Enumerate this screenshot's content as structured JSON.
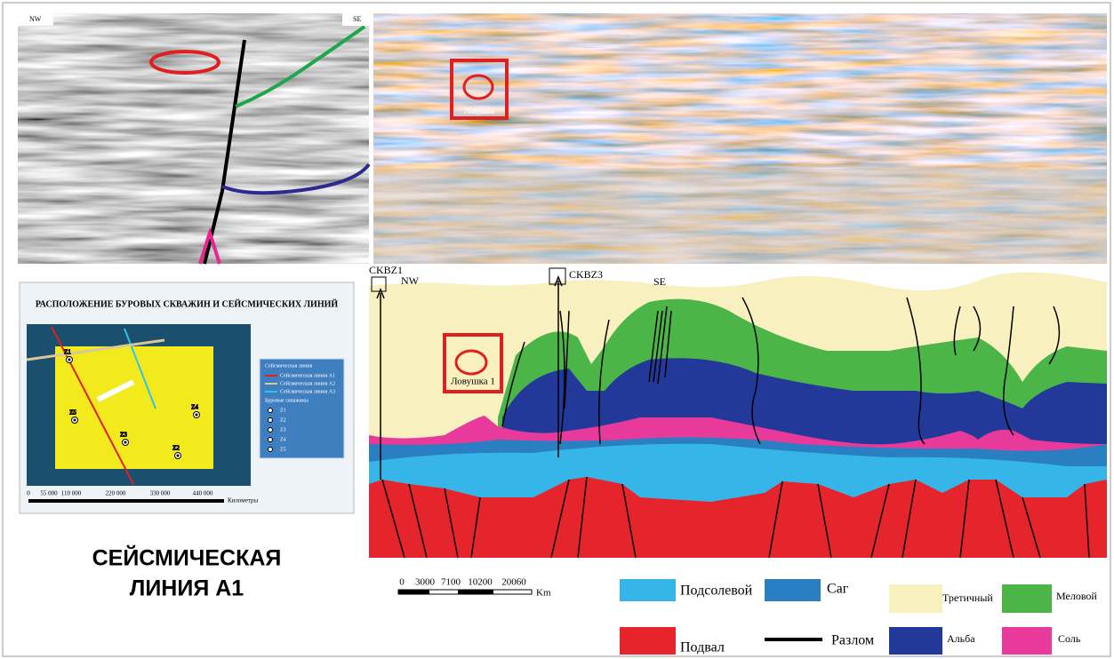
{
  "seismic_left": {
    "nw": "NW",
    "se": "SE"
  },
  "seismic_right": {
    "trap": "Ловушка"
  },
  "map": {
    "title": "РАСПОЛОЖЕНИЕ БУРОВЫХ СКВАЖИН И СЕЙСМИЧЕСКИХ ЛИНИЙ",
    "wells": [
      "Z1",
      "Z5",
      "Z3",
      "Z2",
      "Z4"
    ],
    "legend": {
      "title": "Сейсмическая линия",
      "lines": [
        "Сейсмическая линия A1",
        "Сейсмическая линия A2",
        "Сейсмическая линия A3"
      ],
      "wells_title": "Буровые скважины",
      "wells": [
        "Z1",
        "Z2",
        "Z3",
        "Z4",
        "Z5"
      ]
    },
    "scale": [
      "0",
      "55 000",
      "110 000",
      "220 000",
      "330 000",
      "440 000"
    ],
    "scale_unit": "Километры"
  },
  "caption": [
    "СЕЙСМИЧЕСКАЯ",
    "ЛИНИЯ A1"
  ],
  "section": {
    "wells": [
      "CKBZ1",
      "CKBZ3"
    ],
    "nw": "NW",
    "se": "SE",
    "trap": "Ловушка 1",
    "scale": [
      "0",
      "3000",
      "7100",
      "10200",
      "20060"
    ],
    "scale_unit": "Km"
  },
  "legend": [
    "Подсолевой",
    "Саг",
    "Третичный",
    "Меловой",
    "Подвал",
    "Разлом",
    "Альба",
    "Соль"
  ]
}
